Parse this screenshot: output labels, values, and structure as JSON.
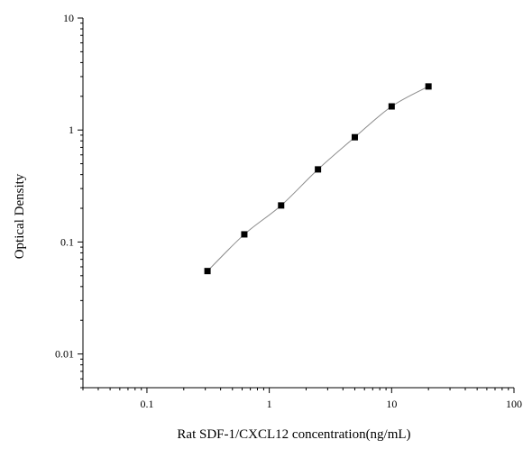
{
  "chart_data": {
    "type": "scatter",
    "title": "",
    "xlabel": "Rat SDF-1/CXCL12 concentration(ng/mL)",
    "ylabel": "Optical Density",
    "x_scale": "log",
    "y_scale": "log",
    "xlim": [
      0.03,
      100
    ],
    "ylim": [
      0.005,
      10
    ],
    "x_tick_values": [
      0.1,
      1,
      10,
      100
    ],
    "x_tick_labels": [
      "0.1",
      "1",
      "10",
      "100"
    ],
    "y_tick_values": [
      0.01,
      0.1,
      1,
      10
    ],
    "y_tick_labels": [
      "0.01",
      "0.1",
      "1",
      "10"
    ],
    "grid": false,
    "legend": "none",
    "series": [
      {
        "x": [
          0.3125,
          0.625,
          1.25,
          2.5,
          5,
          10,
          20
        ],
        "y": [
          0.055,
          0.117,
          0.212,
          0.445,
          0.862,
          1.625,
          2.45
        ],
        "marker": "square",
        "color": "#000000",
        "fit_line": true,
        "line_color": "#8a8a8a"
      }
    ]
  }
}
